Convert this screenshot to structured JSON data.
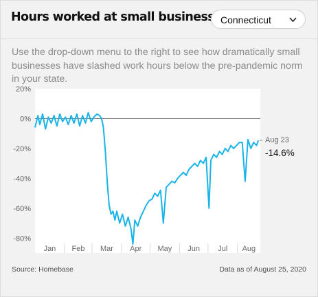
{
  "header": {
    "title": "Hours worked at small businesses",
    "state_select": {
      "selected": "Connecticut"
    }
  },
  "description": "Use the drop-down menu to the right to see how dramatically small businesses have slashed work hours below the pre-pandemic norm in your state.",
  "footer": {
    "source": "Source: Homebase",
    "updated": "Data as of August 25, 2020"
  },
  "colors": {
    "line": "#18b4e9",
    "background": "#f2f2f2",
    "zero_line": "#777777"
  },
  "chart_data": {
    "type": "line",
    "title": "",
    "xlabel": "",
    "ylabel": "",
    "ylim": [
      -90,
      20
    ],
    "y_ticks": [
      20,
      0,
      -20,
      -40,
      -60,
      -80
    ],
    "y_tick_labels": [
      "20%",
      "0%",
      "-20%",
      "-40%",
      "-60%",
      "-80%"
    ],
    "x_tick_labels": [
      "Jan",
      "Feb",
      "Mar",
      "Apr",
      "May",
      "Jun",
      "Jul",
      "Aug"
    ],
    "grid": false,
    "end_label": {
      "date": "Aug 23",
      "value": "-14.6%"
    },
    "series": [
      {
        "x": [
          "2020-01-01",
          "2020-01-04",
          "2020-01-06",
          "2020-01-09",
          "2020-01-12",
          "2020-01-15",
          "2020-01-18",
          "2020-01-21",
          "2020-01-24",
          "2020-01-27",
          "2020-01-30",
          "2020-02-02",
          "2020-02-05",
          "2020-02-08",
          "2020-02-11",
          "2020-02-14",
          "2020-02-17",
          "2020-02-20",
          "2020-02-23",
          "2020-02-26",
          "2020-02-29",
          "2020-03-03",
          "2020-03-06",
          "2020-03-09",
          "2020-03-11",
          "2020-03-13",
          "2020-03-15",
          "2020-03-17",
          "2020-03-19",
          "2020-03-21",
          "2020-03-23",
          "2020-03-25",
          "2020-03-27",
          "2020-03-30",
          "2020-04-02",
          "2020-04-05",
          "2020-04-08",
          "2020-04-11",
          "2020-04-13",
          "2020-04-15",
          "2020-04-18",
          "2020-04-21",
          "2020-04-24",
          "2020-04-27",
          "2020-04-30",
          "2020-05-03",
          "2020-05-06",
          "2020-05-09",
          "2020-05-12",
          "2020-05-15",
          "2020-05-18",
          "2020-05-21",
          "2020-05-24",
          "2020-05-27",
          "2020-05-30",
          "2020-06-02",
          "2020-06-05",
          "2020-06-08",
          "2020-06-11",
          "2020-06-14",
          "2020-06-17",
          "2020-06-20",
          "2020-06-23",
          "2020-06-26",
          "2020-06-29",
          "2020-07-02",
          "2020-07-04",
          "2020-07-07",
          "2020-07-10",
          "2020-07-13",
          "2020-07-16",
          "2020-07-19",
          "2020-07-22",
          "2020-07-25",
          "2020-07-28",
          "2020-07-31",
          "2020-08-03",
          "2020-08-06",
          "2020-08-09",
          "2020-08-12",
          "2020-08-15",
          "2020-08-18",
          "2020-08-21",
          "2020-08-23"
        ],
        "values": [
          -6,
          2,
          -4,
          3,
          -7,
          1,
          -3,
          2,
          -5,
          3,
          -2,
          1,
          -4,
          2,
          -3,
          3,
          -5,
          2,
          -3,
          4,
          -2,
          1,
          3,
          2,
          0,
          -6,
          -22,
          -43,
          -58,
          -64,
          -62,
          -68,
          -62,
          -70,
          -64,
          -72,
          -66,
          -74,
          -84,
          -68,
          -72,
          -66,
          -62,
          -58,
          -55,
          -54,
          -50,
          -52,
          -48,
          -70,
          -46,
          -44,
          -42,
          -43,
          -40,
          -38,
          -36,
          -38,
          -34,
          -32,
          -30,
          -32,
          -28,
          -30,
          -26,
          -60,
          -28,
          -24,
          -26,
          -22,
          -24,
          -20,
          -22,
          -18,
          -20,
          -18,
          -16,
          -16,
          -42,
          -14,
          -20,
          -16,
          -18,
          -14.6
        ]
      }
    ]
  }
}
